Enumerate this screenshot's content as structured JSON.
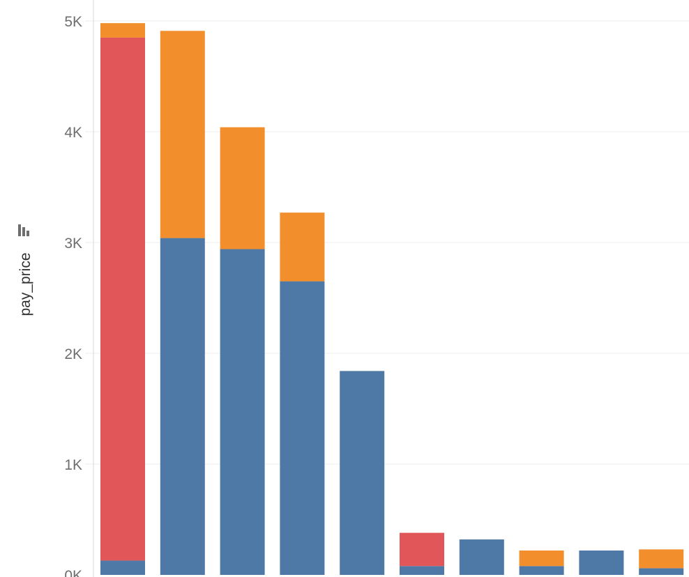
{
  "chart_data": {
    "type": "bar",
    "stacked": true,
    "title": "",
    "xlabel": "",
    "ylabel": "pay_price",
    "ylim": [
      0,
      5000
    ],
    "y_ticks": [
      0,
      1000,
      2000,
      3000,
      4000,
      5000
    ],
    "y_tick_labels": [
      "0K",
      "1K",
      "2K",
      "3K",
      "4K",
      "5K"
    ],
    "grid": true,
    "legend": "none",
    "series": [
      {
        "color": "#4e79a7",
        "values": [
          130,
          3040,
          2940,
          2650,
          1840,
          80,
          320,
          80,
          220,
          60
        ]
      },
      {
        "color": "#e15759",
        "values": [
          4720,
          0,
          0,
          0,
          0,
          300,
          0,
          0,
          0,
          0
        ]
      },
      {
        "color": "#f28e2b",
        "values": [
          130,
          1870,
          1100,
          620,
          0,
          0,
          0,
          140,
          0,
          170
        ]
      }
    ]
  },
  "icons": {
    "sort_icon": "sort-descending-icon"
  }
}
